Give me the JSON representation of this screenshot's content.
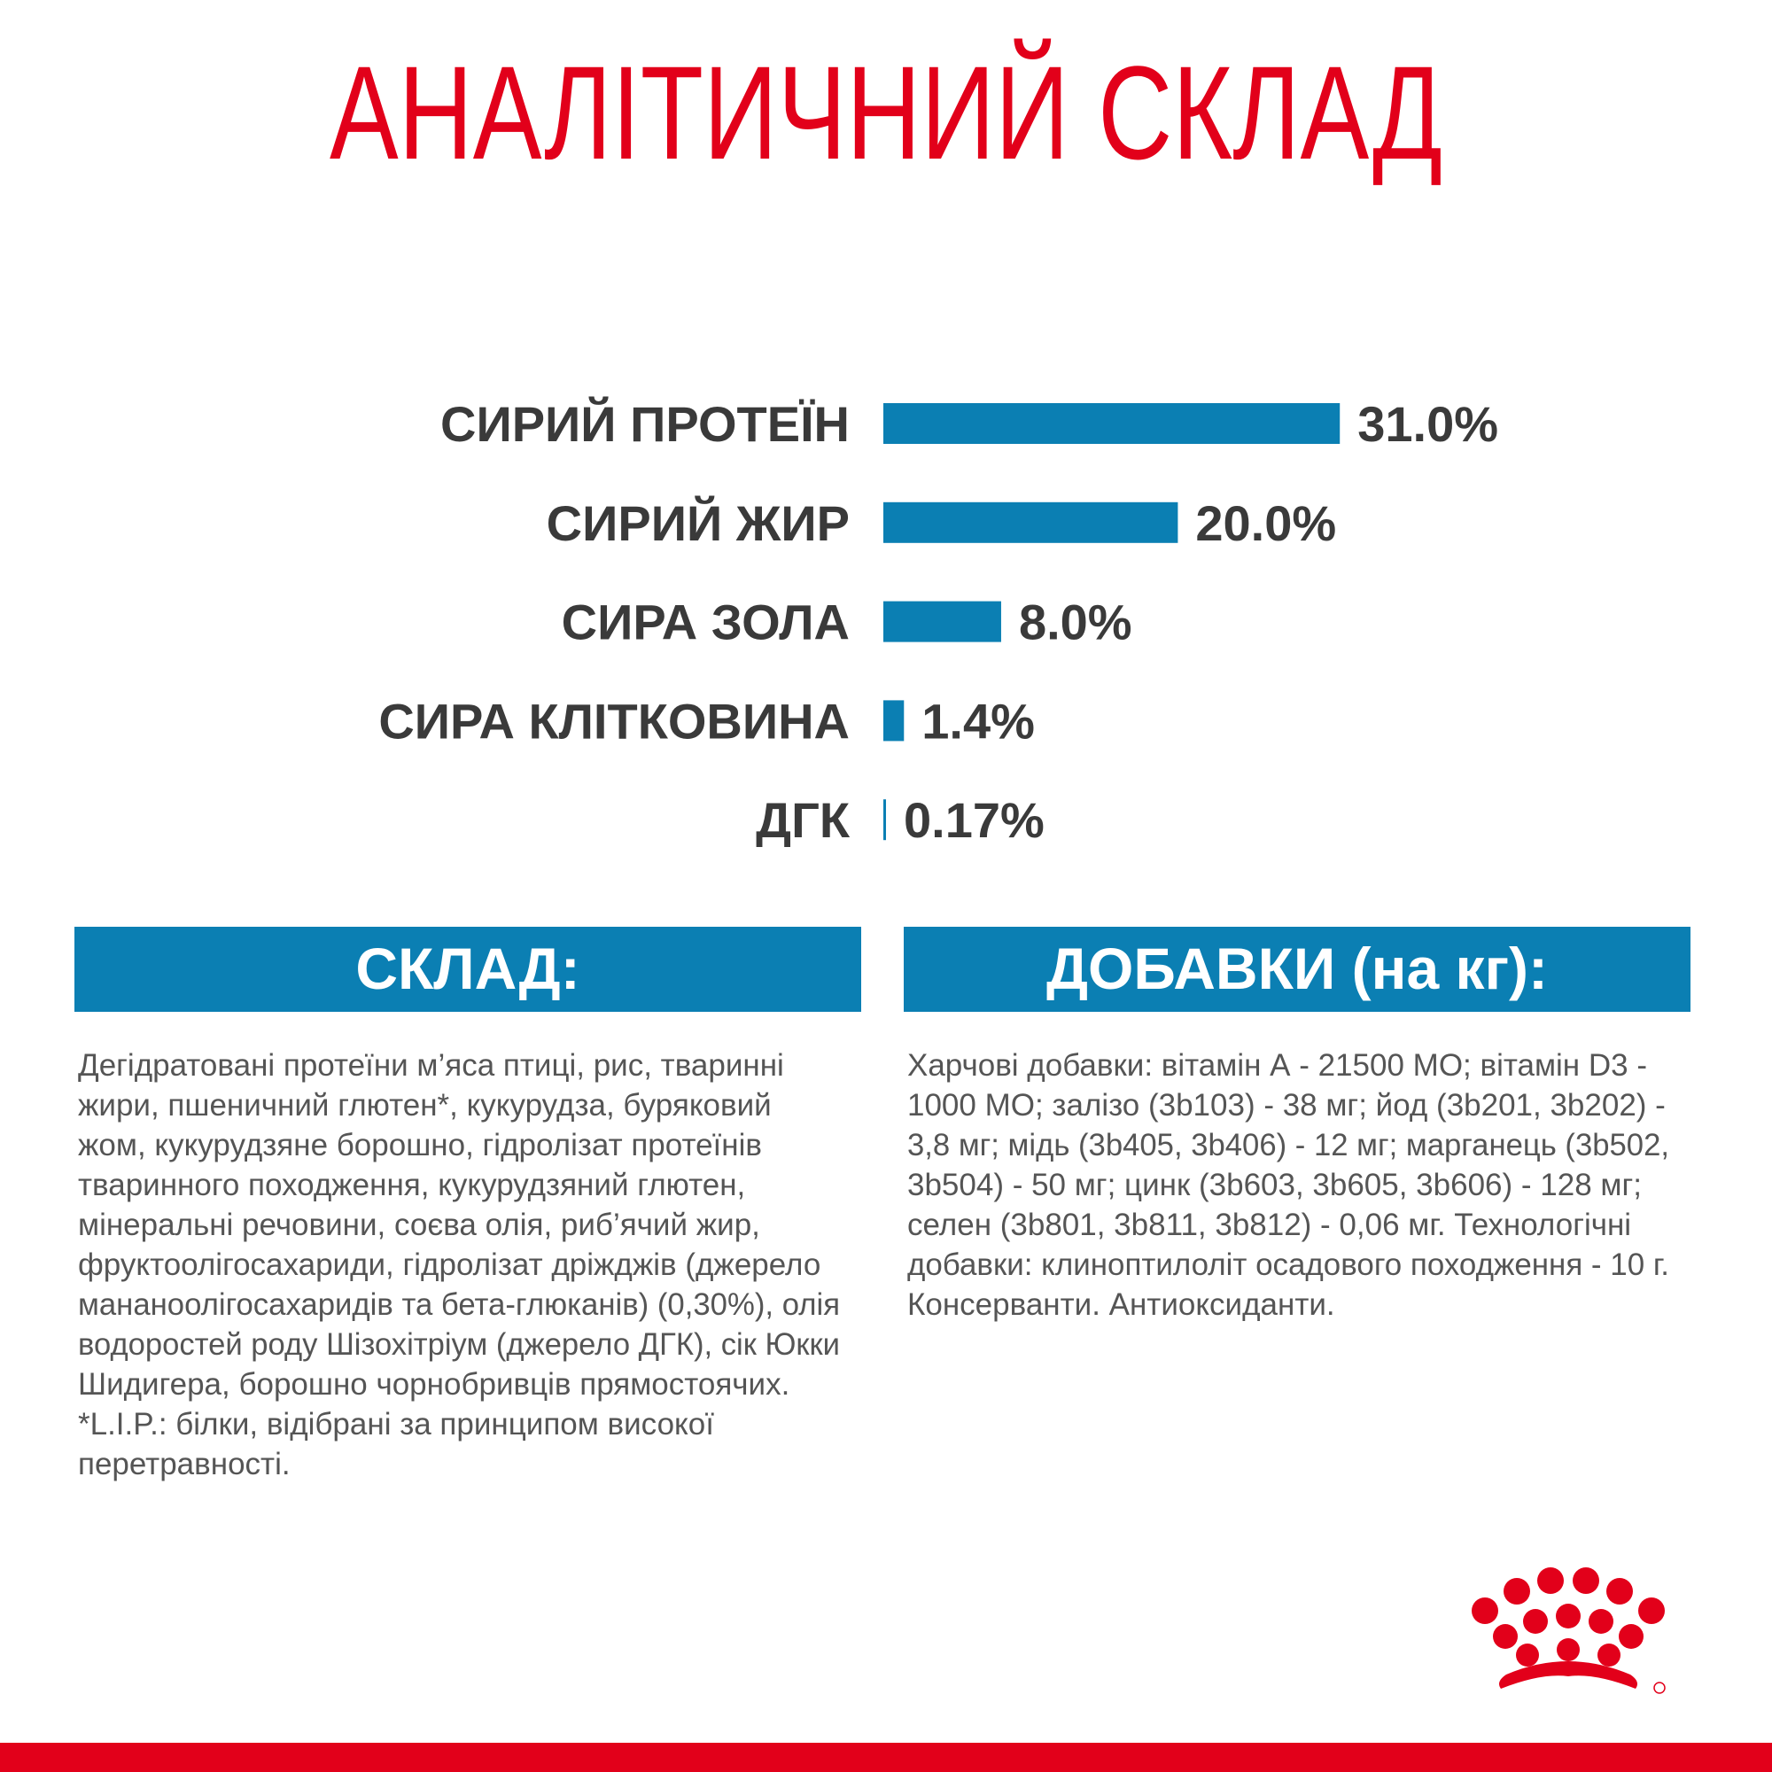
{
  "chart_data": {
    "type": "bar",
    "orientation": "horizontal",
    "title": "АНАЛІТИЧНИЙ СКЛАД",
    "categories": [
      "СИРИЙ ПРОТЕЇН",
      "СИРИЙ ЖИР",
      "СИРА ЗОЛА",
      "СИРА КЛІТКОВИНА",
      "ДГК"
    ],
    "values": [
      31.0,
      20.0,
      8.0,
      1.4,
      0.17
    ],
    "value_labels": [
      "31.0%",
      "20.0%",
      "8.0%",
      "1.4%",
      "0.17%"
    ],
    "color": "#0b7fb3"
  },
  "sections": [
    {
      "title": "СКЛАД:",
      "lines": [
        "Дегідратовані протеїни м’яса птиці, рис, тваринні",
        "жири, пшеничний глютен*, кукурудза, буряковий",
        "жом, кукурудзяне борошно, гідролізат протеїнів",
        "тваринного походження, кукурудзяний глютен,",
        "мінеральні речовини, соєва олія, риб’ячий жир,",
        "фруктоолігосахариди, гідролізат дріжджів (джерело",
        "мананоолігосахаридів та бета-глюканів) (0,30%), олія",
        "водоростей роду Шізохітріум (джерело ДГК), сік Юкки",
        "Шидигера, борошно чорнобривців прямостоячих.",
        "*L.I.P.: білки, відібрані за принципом високої",
        "перетравності."
      ]
    },
    {
      "title": "ДОБАВКИ (на кг):",
      "lines": [
        "Харчові добавки: вітамін А - 21500 МО; вітамін D3 -",
        "1000 МО; залізо (3b103) - 38 мг; йод (3b201, 3b202) -",
        "3,8 мг; мідь (3b405, 3b406) - 12 мг; марганець (3b502,",
        "3b504) - 50 мг; цинк (3b603, 3b605, 3b606) - 128 мг;",
        "селен (3b801, 3b811, 3b812) - 0,06 мг. Технологічні",
        "добавки: клиноптилоліт осадового походження - 10 г.",
        "Консерванти. Антиоксиданти."
      ]
    }
  ]
}
